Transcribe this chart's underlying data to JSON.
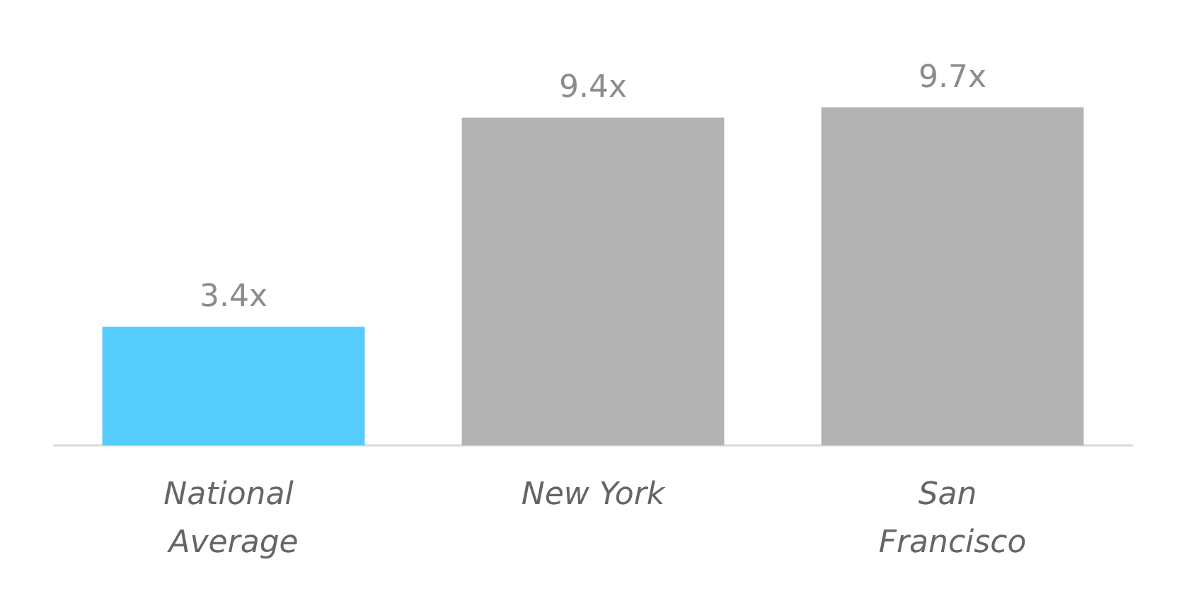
{
  "chart_data": {
    "type": "bar",
    "categories": [
      "National Average",
      "New York",
      "San Francisco"
    ],
    "values": [
      3.4,
      9.4,
      9.7
    ],
    "colors": [
      "#55ccfb",
      "#b3b3b3",
      "#b3b3b3"
    ],
    "value_labels": [
      "3.4x",
      "9.4x",
      "9.7x"
    ]
  }
}
